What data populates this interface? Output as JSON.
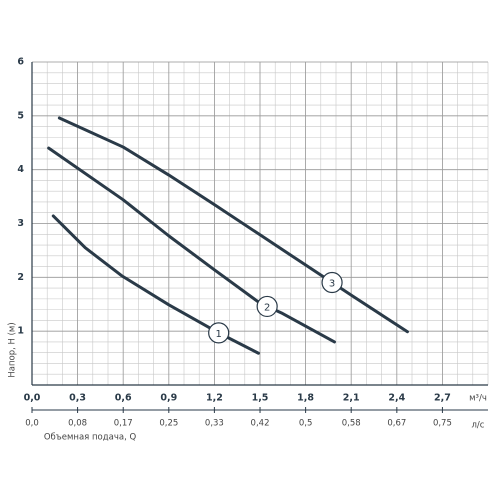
{
  "chart_data": {
    "type": "line",
    "ylabel": "Напор, H (м)",
    "xlabel": "Объемная подача, Q",
    "xunit": "м³/ч",
    "x2unit": "л/с",
    "xlim": [
      0,
      3.0
    ],
    "xticks": [
      {
        "value": 0,
        "label": "0,0"
      },
      {
        "value": 0.3,
        "label": "0,3"
      },
      {
        "value": 0.6,
        "label": "0,6"
      },
      {
        "value": 0.9,
        "label": "0,9"
      },
      {
        "value": 1.2,
        "label": "1,2"
      },
      {
        "value": 1.5,
        "label": "1,5"
      },
      {
        "value": 1.8,
        "label": "1,8"
      },
      {
        "value": 2.1,
        "label": "2,1"
      },
      {
        "value": 2.4,
        "label": "2,4"
      },
      {
        "value": 2.7,
        "label": "2,7"
      }
    ],
    "x2lim": [
      0,
      0.8333
    ],
    "x2ticks": [
      {
        "value": 0,
        "label": "0,0"
      },
      {
        "value": 0.0833,
        "label": "0,08"
      },
      {
        "value": 0.1667,
        "label": "0,17"
      },
      {
        "value": 0.25,
        "label": "0,25"
      },
      {
        "value": 0.3333,
        "label": "0,33"
      },
      {
        "value": 0.4167,
        "label": "0,42"
      },
      {
        "value": 0.5,
        "label": "0,5"
      },
      {
        "value": 0.5833,
        "label": "0,58"
      },
      {
        "value": 0.6667,
        "label": "0,67"
      },
      {
        "value": 0.75,
        "label": "0,75"
      }
    ],
    "ylim": [
      0,
      6
    ],
    "yticks": [
      1,
      2,
      3,
      4,
      5,
      6
    ],
    "grid": true,
    "series": [
      {
        "name": "1",
        "color": "#2a3a48",
        "x": [
          0.14,
          0.35,
          0.59,
          0.9,
          1.22,
          1.49
        ],
        "values": [
          3.14,
          2.55,
          2.03,
          1.49,
          0.98,
          0.59
        ]
      },
      {
        "name": "2",
        "color": "#2a3a48",
        "x": [
          0.11,
          0.6,
          0.9,
          1.2,
          1.5,
          1.64,
          1.99
        ],
        "values": [
          4.4,
          3.44,
          2.77,
          2.14,
          1.52,
          1.34,
          0.8
        ]
      },
      {
        "name": "3",
        "color": "#2a3a48",
        "x": [
          0.18,
          0.6,
          0.9,
          1.2,
          1.5,
          2.11,
          2.47
        ],
        "values": [
          4.96,
          4.42,
          3.9,
          3.35,
          2.79,
          1.65,
          0.99
        ]
      }
    ]
  }
}
